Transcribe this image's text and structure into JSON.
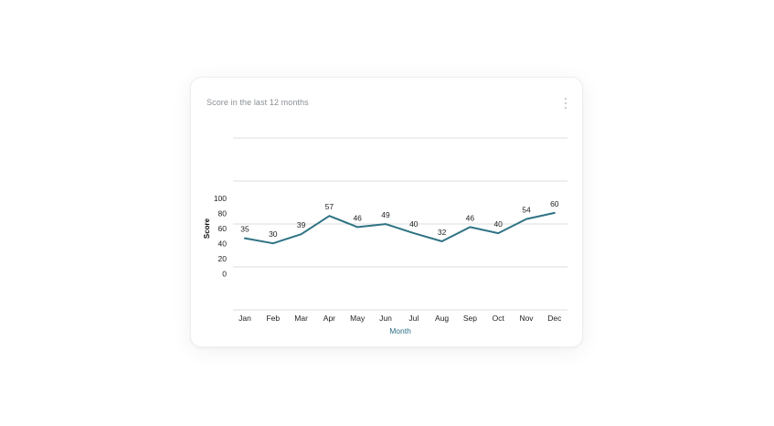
{
  "card": {
    "title": "Score in the last 12 months"
  },
  "icons": {
    "menu": "kebab-vertical-icon"
  },
  "colors": {
    "line": "#2f7384",
    "grid": "#d9dcdf",
    "axis_title_x": "#2f6f86"
  },
  "chart_data": {
    "type": "line",
    "title": "Score in the last 12 months",
    "xlabel": "Month",
    "ylabel": "Score",
    "categories": [
      "Jan",
      "Feb",
      "Mar",
      "Apr",
      "May",
      "Jun",
      "Jul",
      "Aug",
      "Sep",
      "Oct",
      "Nov",
      "Dec"
    ],
    "series": [
      {
        "values": [
          35,
          30,
          39,
          57,
          46,
          49,
          40,
          32,
          46,
          40,
          54,
          60
        ]
      }
    ],
    "yticks": [
      "100",
      "80",
      "60",
      "40",
      "20",
      "0"
    ],
    "ylim": [
      0,
      100
    ],
    "grid": true,
    "data_labels": true,
    "legend": false
  }
}
